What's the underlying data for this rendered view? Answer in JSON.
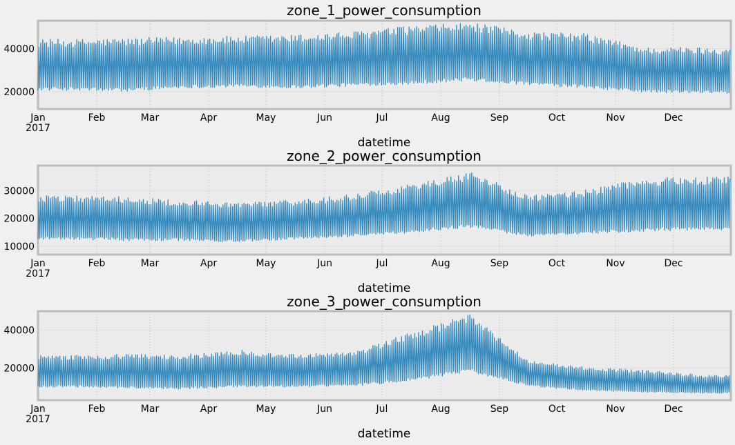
{
  "chart_data": [
    {
      "type": "line",
      "title": "zone_1_power_consumption",
      "xlabel": "datetime",
      "year_label": "2017",
      "x_tick_labels": [
        "Jan",
        "Feb",
        "Mar",
        "Apr",
        "May",
        "Jun",
        "Jul",
        "Aug",
        "Sep",
        "Oct",
        "Nov",
        "Dec"
      ],
      "y_ticks": [
        20000,
        40000
      ],
      "ylim": [
        12000,
        53000
      ],
      "grid": true,
      "series": [
        {
          "color": "#348abd",
          "daily_low": [
            21500,
            21000,
            22500,
            23000,
            22500,
            23500,
            24500,
            26000,
            24000,
            22500,
            20500,
            20000
          ],
          "daily_high": [
            42500,
            43000,
            43500,
            44000,
            44500,
            46000,
            48500,
            50000,
            46000,
            45000,
            39000,
            39000
          ]
        }
      ]
    },
    {
      "type": "line",
      "title": "zone_2_power_consumption",
      "xlabel": "datetime",
      "year_label": "2017",
      "x_tick_labels": [
        "Jan",
        "Feb",
        "Mar",
        "Apr",
        "May",
        "Jun",
        "Jul",
        "Aug",
        "Sep",
        "Oct",
        "Nov",
        "Dec"
      ],
      "y_ticks": [
        10000,
        20000,
        30000
      ],
      "ylim": [
        7000,
        39000
      ],
      "grid": true,
      "series": [
        {
          "color": "#348abd",
          "daily_low": [
            13000,
            12500,
            12500,
            12000,
            13000,
            14000,
            15500,
            17500,
            14000,
            15000,
            16000,
            16500
          ],
          "daily_high": [
            27000,
            26500,
            25500,
            24500,
            25500,
            27500,
            31000,
            35000,
            27000,
            29000,
            33000,
            33500
          ]
        }
      ]
    },
    {
      "type": "line",
      "title": "zone_3_power_consumption",
      "xlabel": "datetime",
      "year_label": "2017",
      "x_tick_labels": [
        "Jan",
        "Feb",
        "Mar",
        "Apr",
        "May",
        "Jun",
        "Jul",
        "Aug",
        "Sep",
        "Oct",
        "Nov",
        "Dec"
      ],
      "y_ticks": [
        20000,
        40000
      ],
      "ylim": [
        3000,
        50000
      ],
      "grid": true,
      "series": [
        {
          "color": "#348abd",
          "daily_low": [
            10500,
            10000,
            9500,
            10500,
            10500,
            11000,
            14000,
            19000,
            11000,
            8500,
            7500,
            7000
          ],
          "daily_high": [
            25500,
            26000,
            25500,
            28000,
            26000,
            27000,
            37000,
            46000,
            23000,
            19500,
            18000,
            15500
          ]
        }
      ]
    }
  ]
}
